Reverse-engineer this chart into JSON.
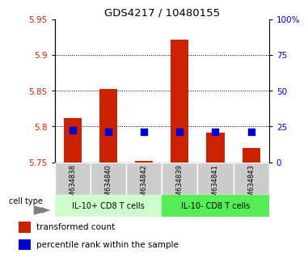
{
  "title": "GDS4217 / 10480155",
  "samples": [
    "GSM634838",
    "GSM634840",
    "GSM634842",
    "GSM634839",
    "GSM634841",
    "GSM634843"
  ],
  "red_tops": [
    5.812,
    5.852,
    5.752,
    5.922,
    5.792,
    5.77
  ],
  "blue_y": [
    5.795,
    5.793,
    5.793,
    5.793,
    5.793,
    5.793
  ],
  "baseline": 5.75,
  "ylim": [
    5.75,
    5.95
  ],
  "yticks_left": [
    5.75,
    5.8,
    5.85,
    5.9,
    5.95
  ],
  "yticks_right_vals": [
    0,
    25,
    50,
    75,
    100
  ],
  "yticks_right_labels": [
    "0",
    "25",
    "50",
    "75",
    "100%"
  ],
  "group1_label": "IL-10+ CD8 T cells",
  "group2_label": "IL-10- CD8 T cells",
  "group1_indices": [
    0,
    1,
    2
  ],
  "group2_indices": [
    3,
    4,
    5
  ],
  "cell_type_label": "cell type",
  "legend1": "transformed count",
  "legend2": "percentile rank within the sample",
  "red_color": "#cc2200",
  "blue_color": "#0000cc",
  "group_bg_light": "#ccffcc",
  "group_bg_dark": "#55ee55",
  "sample_bg": "#cccccc",
  "bar_width": 0.5,
  "blue_size": 30
}
